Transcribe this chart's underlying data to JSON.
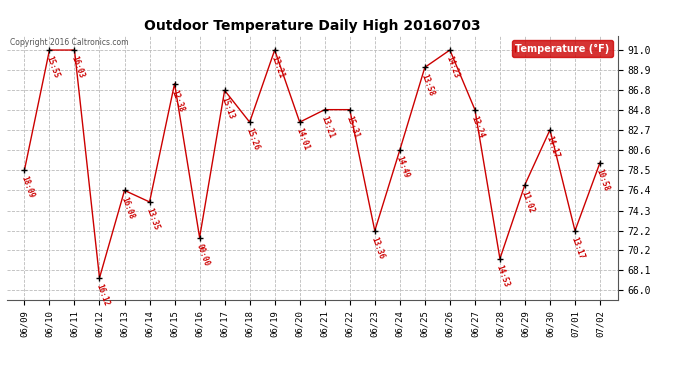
{
  "title": "Outdoor Temperature Daily High 20160703",
  "copyright": "Copyright 2016 Caltronics.com",
  "legend_label": "Temperature (°F)",
  "yticks": [
    66.0,
    68.1,
    70.2,
    72.2,
    74.3,
    76.4,
    78.5,
    80.6,
    82.7,
    84.8,
    86.8,
    88.9,
    91.0
  ],
  "ylim": [
    65.0,
    92.5
  ],
  "dates": [
    "06/09",
    "06/10",
    "06/11",
    "06/12",
    "06/13",
    "06/14",
    "06/15",
    "06/16",
    "06/17",
    "06/18",
    "06/19",
    "06/20",
    "06/21",
    "06/22",
    "06/23",
    "06/24",
    "06/25",
    "06/26",
    "06/27",
    "06/28",
    "06/29",
    "06/30",
    "07/01",
    "07/02"
  ],
  "values": [
    78.5,
    91.0,
    91.0,
    67.3,
    76.4,
    75.2,
    87.5,
    71.5,
    86.8,
    83.5,
    91.0,
    83.5,
    84.8,
    84.8,
    72.2,
    80.6,
    89.2,
    91.0,
    84.8,
    69.3,
    77.0,
    82.7,
    72.2,
    79.3
  ],
  "labels": [
    "18:09",
    "15:55",
    "16:03",
    "16:12",
    "16:08",
    "13:35",
    "12:38",
    "00:00",
    "15:13",
    "15:26",
    "13:21",
    "14:01",
    "13:21",
    "15:31",
    "13:36",
    "14:49",
    "13:58",
    "14:23",
    "13:24",
    "14:53",
    "11:02",
    "14:17",
    "13:17",
    "10:58"
  ],
  "line_color": "#cc0000",
  "marker_color": "#000000",
  "bg_color": "#ffffff",
  "grid_color": "#bbbbbb",
  "label_color": "#cc0000",
  "title_color": "#000000",
  "legend_bg": "#cc0000",
  "legend_fg": "#ffffff",
  "figwidth": 6.9,
  "figheight": 3.75,
  "dpi": 100
}
